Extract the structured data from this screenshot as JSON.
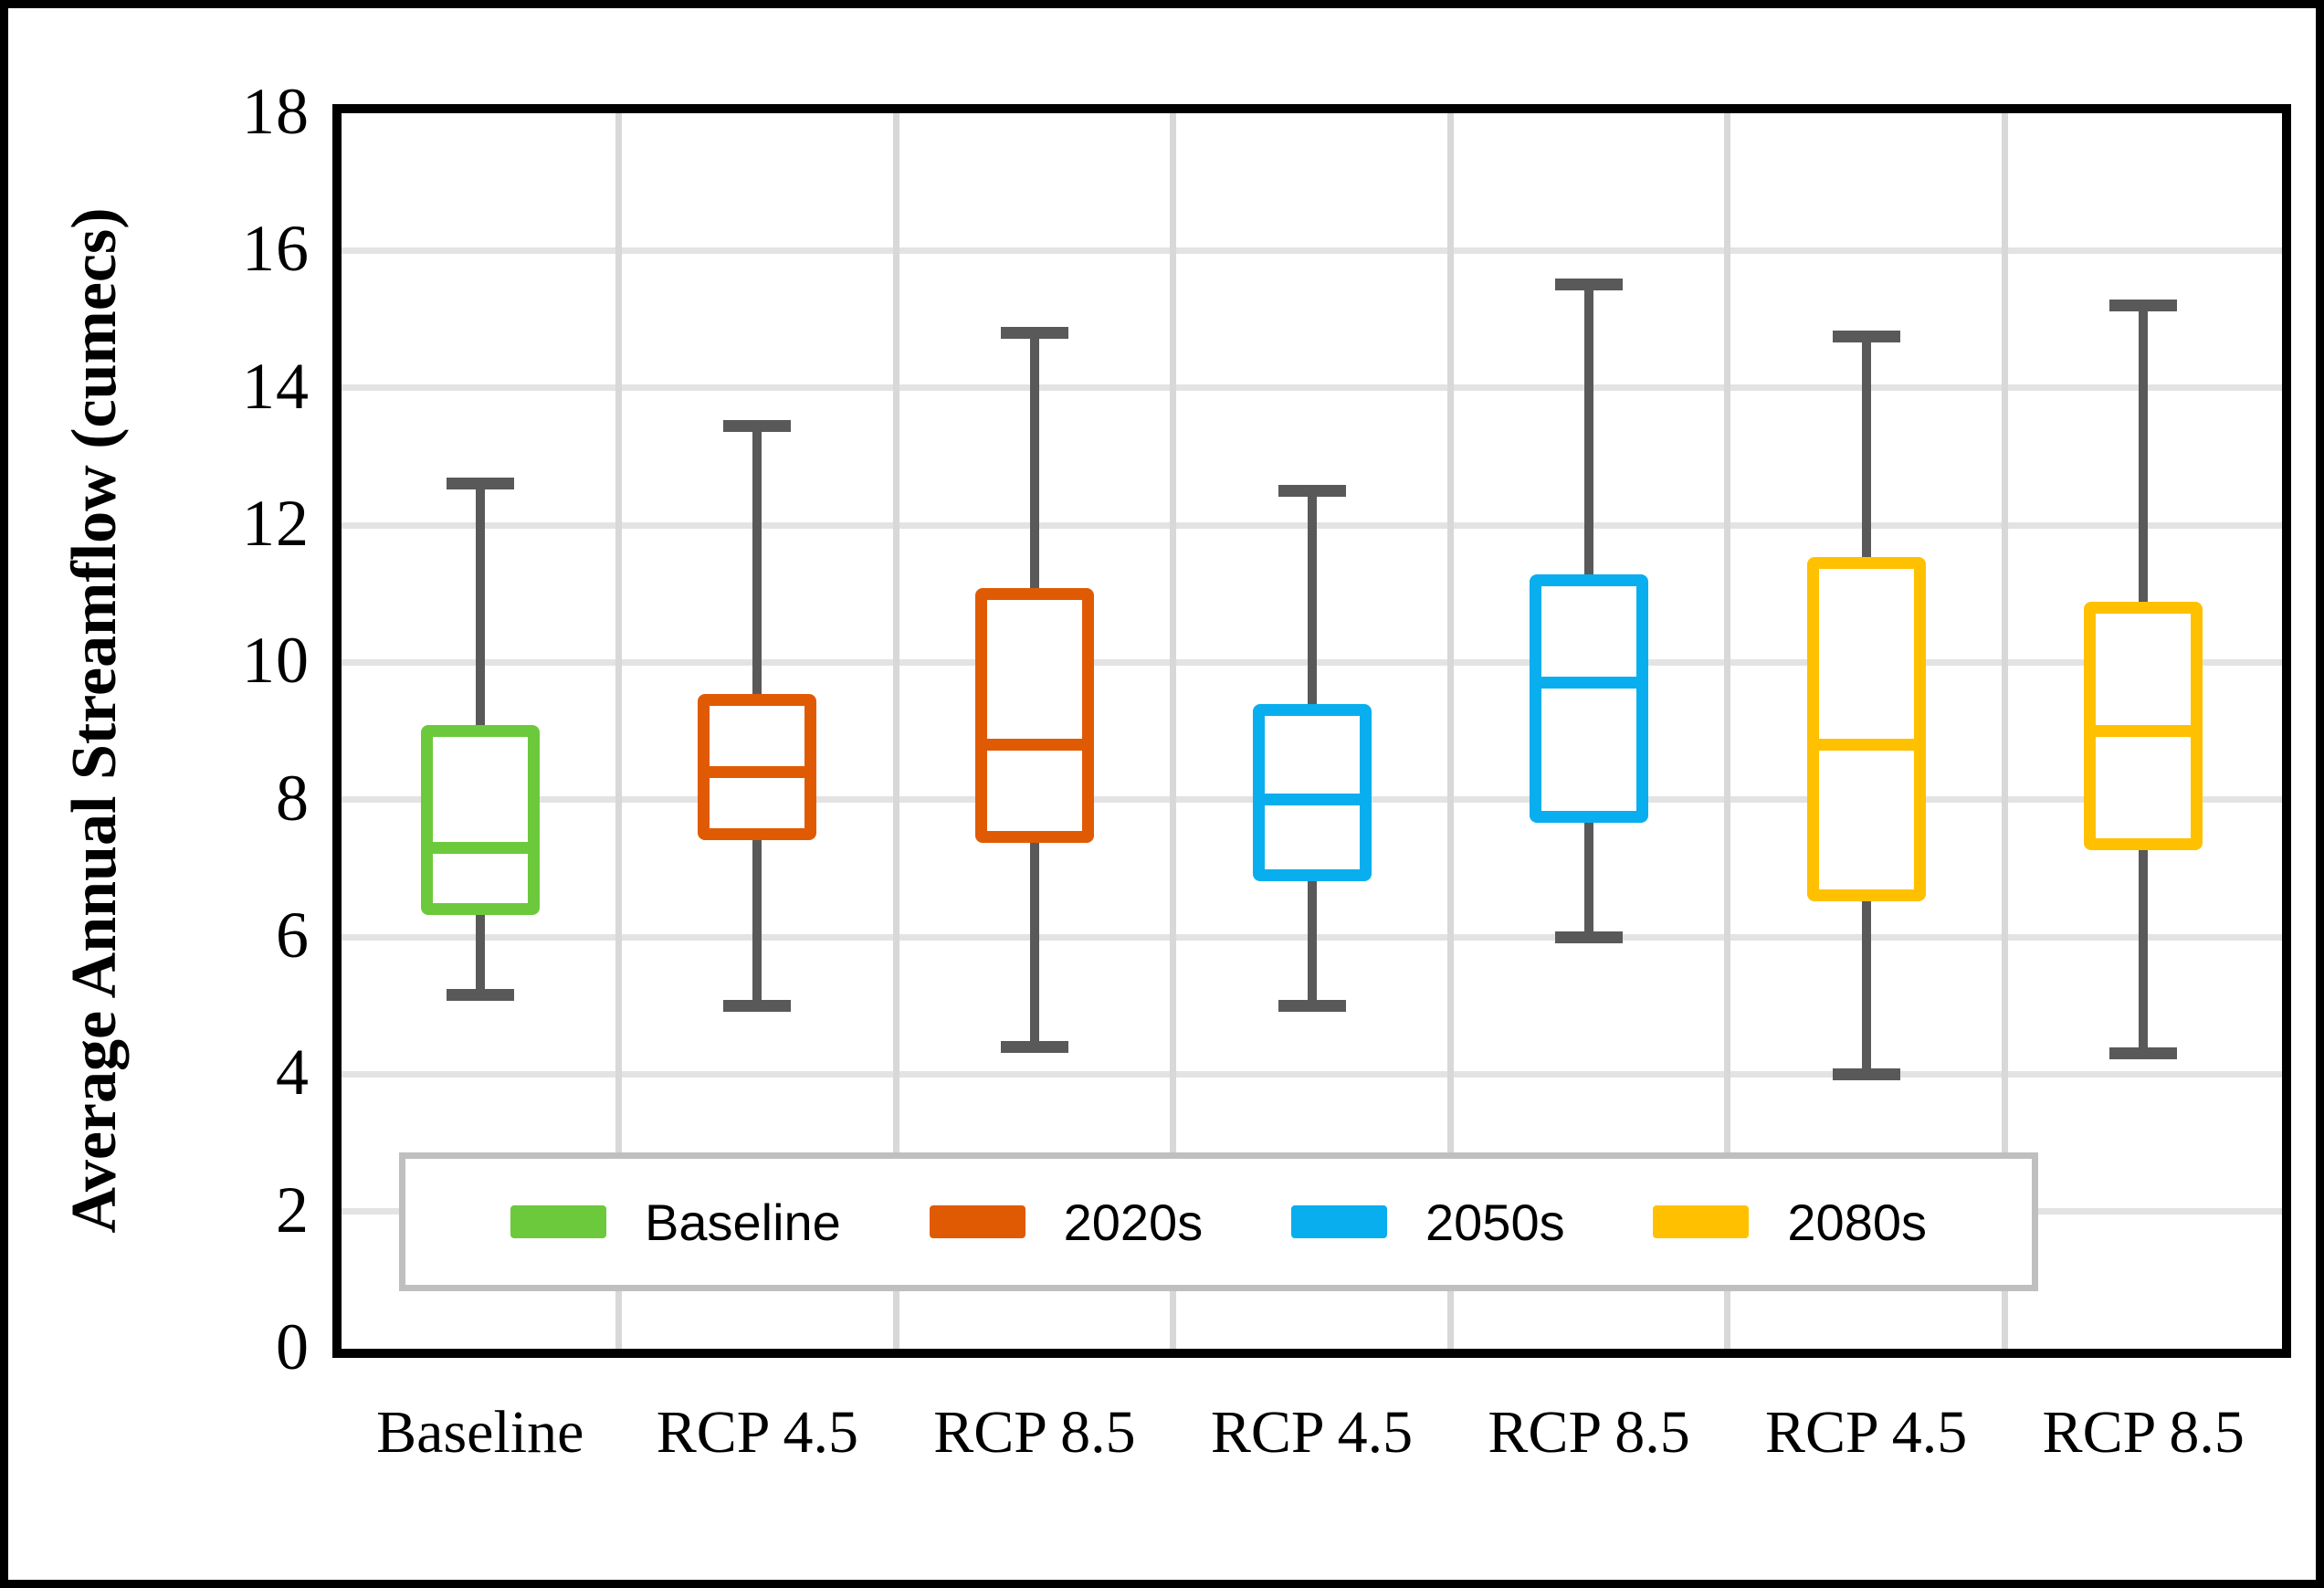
{
  "figure": {
    "y_axis_title": "Average Annual Streamflow (cumecs)"
  },
  "legend": {
    "items": [
      {
        "label": "Baseline",
        "color": "#6cc93c"
      },
      {
        "label": "2020s",
        "color": "#e05a04"
      },
      {
        "label": "2050s",
        "color": "#09aeef"
      },
      {
        "label": "2080s",
        "color": "#ffc000"
      }
    ]
  },
  "chart_data": {
    "type": "boxplot",
    "title": "",
    "xlabel": "",
    "ylabel": "Average Annual Streamflow (cumecs)",
    "ylim": [
      0,
      18
    ],
    "ytick_step": 2,
    "grid": true,
    "legend_position": "bottom-inside",
    "whisker_color": "#595959",
    "categories": [
      "Baseline",
      "RCP 4.5",
      "RCP 8.5",
      "RCP 4.5",
      "RCP 8.5",
      "RCP 4.5",
      "RCP 8.5"
    ],
    "series": [
      {
        "x_label": "Baseline",
        "group": "Baseline",
        "color": "#6cc93c",
        "whisker_low": 5.15,
        "q1": 6.4,
        "median": 7.3,
        "q3": 9.0,
        "whisker_high": 12.6
      },
      {
        "x_label": "RCP 4.5",
        "group": "2020s",
        "color": "#e05a04",
        "whisker_low": 5.0,
        "q1": 7.5,
        "median": 8.4,
        "q3": 9.45,
        "whisker_high": 13.45
      },
      {
        "x_label": "RCP 8.5",
        "group": "2020s",
        "color": "#e05a04",
        "whisker_low": 4.4,
        "q1": 7.45,
        "median": 8.8,
        "q3": 11.0,
        "whisker_high": 14.8
      },
      {
        "x_label": "RCP 4.5",
        "group": "2050s",
        "color": "#09aeef",
        "whisker_low": 5.0,
        "q1": 6.9,
        "median": 8.0,
        "q3": 9.3,
        "whisker_high": 12.5
      },
      {
        "x_label": "RCP 8.5",
        "group": "2050s",
        "color": "#09aeef",
        "whisker_low": 6.0,
        "q1": 7.75,
        "median": 9.7,
        "q3": 11.2,
        "whisker_high": 15.5
      },
      {
        "x_label": "RCP 4.5",
        "group": "2080s",
        "color": "#ffc000",
        "whisker_low": 4.0,
        "q1": 6.6,
        "median": 8.8,
        "q3": 11.45,
        "whisker_high": 14.75
      },
      {
        "x_label": "RCP 8.5",
        "group": "2080s",
        "color": "#ffc000",
        "whisker_low": 4.3,
        "q1": 7.35,
        "median": 9.0,
        "q3": 10.8,
        "whisker_high": 15.2
      }
    ]
  }
}
